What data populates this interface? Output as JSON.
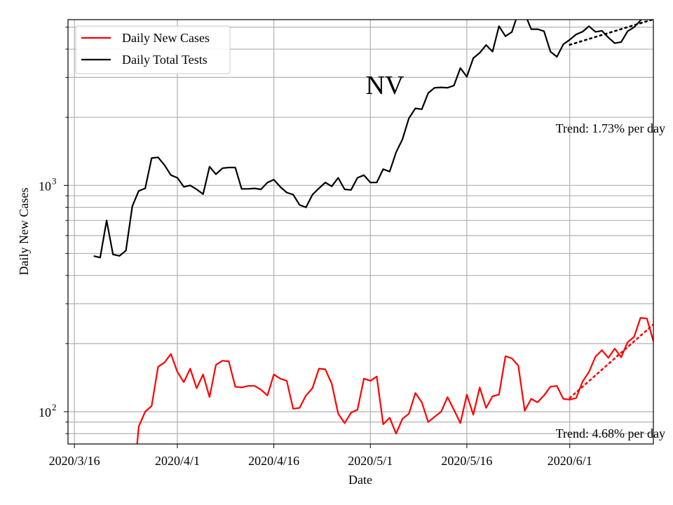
{
  "chart_data": {
    "type": "line",
    "title": "NV",
    "xlabel": "Date",
    "ylabel": "Daily New Cases",
    "yscale": "log",
    "ylim": [
      72,
      5400
    ],
    "xlim_days": [
      -1,
      90
    ],
    "x_ticks": [
      {
        "day": 0,
        "label": "2020/3/16"
      },
      {
        "day": 16,
        "label": "2020/4/1"
      },
      {
        "day": 31,
        "label": "2020/4/16"
      },
      {
        "day": 46,
        "label": "2020/5/1"
      },
      {
        "day": 61,
        "label": "2020/5/16"
      },
      {
        "day": 77,
        "label": "2020/6/1"
      }
    ],
    "y_ticks": [
      {
        "value": 100,
        "base": "10",
        "exp": "2"
      },
      {
        "value": 1000,
        "base": "10",
        "exp": "3"
      }
    ],
    "start_day": 3,
    "colors": {
      "cases": "#ff0000",
      "tests": "#000000",
      "grid": "#b0b0b0"
    },
    "series": [
      {
        "name": "Daily Total Tests",
        "key": "tests",
        "values": [
          487,
          480,
          700,
          495,
          488,
          515,
          810,
          945,
          970,
          1320,
          1330,
          1230,
          1110,
          1080,
          985,
          1000,
          960,
          915,
          1210,
          1120,
          1190,
          1200,
          1200,
          965,
          965,
          970,
          960,
          1030,
          1060,
          985,
          930,
          910,
          820,
          800,
          910,
          970,
          1030,
          990,
          1080,
          960,
          955,
          1080,
          1110,
          1030,
          1030,
          1180,
          1150,
          1400,
          1600,
          1980,
          2190,
          2170,
          2560,
          2700,
          2710,
          2700,
          2760,
          3300,
          3020,
          3650,
          3850,
          4170,
          3900,
          5050,
          4560,
          4760,
          5800,
          5750,
          4900,
          4900,
          4800,
          3900,
          3700,
          4200,
          4400,
          4650,
          4780,
          5050,
          4770,
          4820,
          4500,
          4250,
          4300,
          4800,
          5000,
          5350,
          5850,
          5800,
          5650
        ]
      },
      {
        "name": "Daily New Cases",
        "key": "cases",
        "values": [
          null,
          null,
          null,
          null,
          null,
          null,
          42,
          86,
          100,
          106,
          158,
          165,
          180,
          150,
          135,
          155,
          127,
          146,
          116,
          161,
          168,
          167,
          129,
          128,
          130,
          130,
          125,
          118,
          146,
          140,
          137,
          103,
          104,
          118,
          127,
          155,
          154,
          133,
          98,
          89,
          99,
          102,
          140,
          137,
          143,
          88,
          94,
          80,
          93,
          98,
          121,
          110,
          90,
          95,
          100,
          116,
          102,
          89,
          119,
          97,
          128,
          104,
          117,
          119,
          176,
          172,
          160,
          101,
          114,
          110,
          118,
          129,
          130,
          114,
          113,
          115,
          136,
          150,
          175,
          187,
          173,
          190,
          174,
          203,
          214,
          260,
          258,
          205,
          168
        ]
      }
    ],
    "trends": [
      {
        "series": "tests",
        "label": "Trend: 1.73% per day",
        "start_day": 77,
        "end_day": 90,
        "start_value": 4180,
        "end_value": 5420
      },
      {
        "series": "cases",
        "label": "Trend: 4.68% per day",
        "start_day": 77,
        "end_day": 90,
        "start_value": 115,
        "end_value": 243
      }
    ],
    "legend": {
      "position": "top-left",
      "entries": [
        "Daily New Cases",
        "Daily Total Tests"
      ]
    }
  }
}
